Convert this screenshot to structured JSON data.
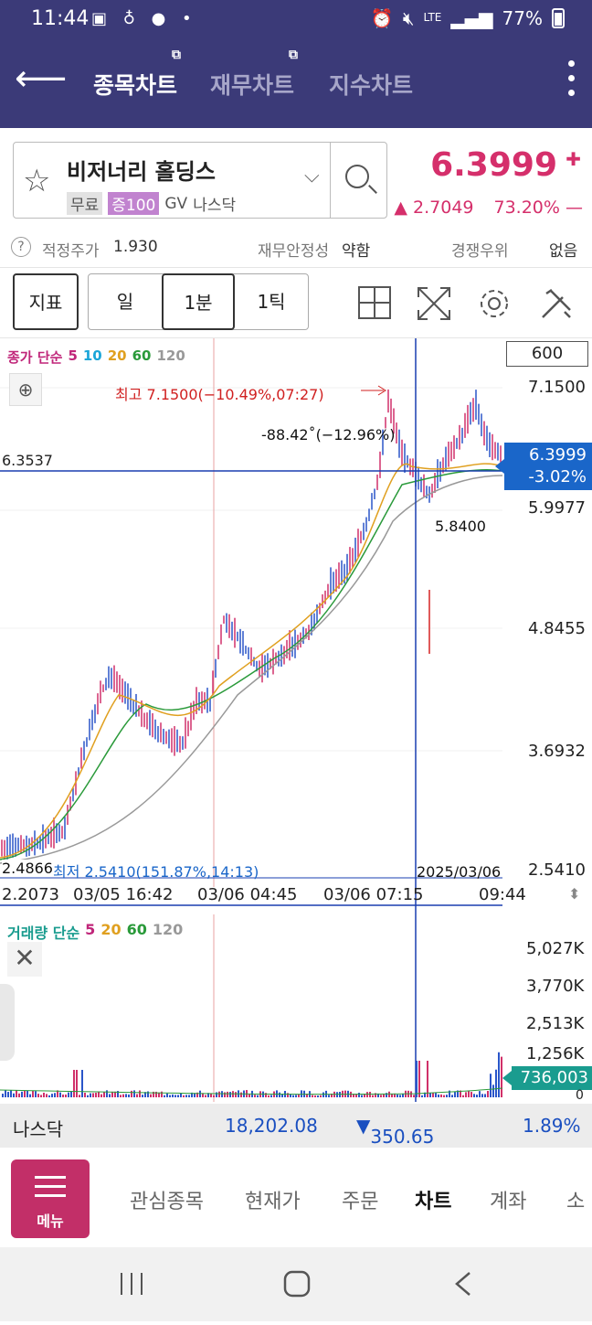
{
  "status_bar": {
    "time": "11:44",
    "battery": "77%",
    "network": "LTE"
  },
  "header": {
    "tabs": [
      {
        "label": "종목차트",
        "active": true
      },
      {
        "label": "재무차트",
        "active": false
      },
      {
        "label": "지수차트",
        "active": false
      }
    ]
  },
  "stock": {
    "name": "비저너리 홀딩스",
    "tags": [
      "무료",
      "증100",
      "GV",
      "나스닥"
    ],
    "price": "6.3999",
    "change": "2.7049",
    "change_pct": "73.20%"
  },
  "info": {
    "fair_price_label": "적정주가",
    "fair_price": "1.930",
    "stability_label": "재무안정성",
    "stability": "약함",
    "competition_label": "경쟁우위",
    "competition": "없음"
  },
  "toolbar": {
    "indicator": "지표",
    "periods": [
      "일",
      "1분",
      "1틱"
    ],
    "selected_period": "1분"
  },
  "chart": {
    "legend": {
      "title": "종가 단순",
      "ma": [
        "5",
        "10",
        "20",
        "60",
        "120"
      ]
    },
    "count_box": "600",
    "y_labels": [
      "7.1500",
      "5.9977",
      "4.8455",
      "3.6932",
      "2.5410"
    ],
    "crosshair_price": "6.3537",
    "current_price_tag": "6.3999",
    "current_pct_tag": "-3.02%",
    "high_label": "최고 7.1500(−10.49%,07:27)",
    "angle_label": "-88.42˚(−12.96%)",
    "point_label": "5.8400",
    "low_label": "최저 2.5410(151.87%,14:13)",
    "left_low": "2.4866",
    "left_bottom": "2.2073",
    "crosshair_date": "2025/03/06",
    "time_labels": [
      "03/05 16:42",
      "03/06 04:45",
      "03/06 07:15",
      "09:44"
    ]
  },
  "volume": {
    "legend": {
      "title": "거래량 단순",
      "ma": [
        "5",
        "20",
        "60",
        "120"
      ]
    },
    "y_labels": [
      "5,027K",
      "3,770K",
      "2,513K",
      "1,256K"
    ],
    "current": "736,003",
    "zero": "0"
  },
  "index_bar": {
    "name": "나스닥",
    "value": "18,202.08",
    "change": "350.65",
    "pct": "1.89%"
  },
  "bottom_nav": {
    "menu": "메뉴",
    "items": [
      "관심종목",
      "현재가",
      "주문",
      "차트",
      "계좌",
      "소"
    ],
    "active": "차트"
  },
  "colors": {
    "brand": "#3b3a78",
    "up": "#d52f6b",
    "blue": "#1a66c9",
    "teal": "#1a9c8f"
  }
}
